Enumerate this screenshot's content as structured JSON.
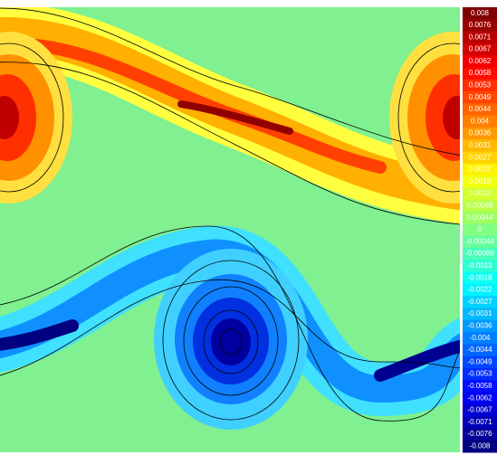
{
  "chart_data": {
    "type": "contour",
    "colormap": "jet",
    "colorbar_ticks": [
      {
        "value": 0.008,
        "label": "0.008"
      },
      {
        "value": 0.0076,
        "label": "0.0076"
      },
      {
        "value": 0.0071,
        "label": "0.0071"
      },
      {
        "value": 0.0067,
        "label": "0.0067"
      },
      {
        "value": 0.0062,
        "label": "0.0062"
      },
      {
        "value": 0.0058,
        "label": "0.0058"
      },
      {
        "value": 0.0053,
        "label": "0.0053"
      },
      {
        "value": 0.0049,
        "label": "0.0049"
      },
      {
        "value": 0.0044,
        "label": "0.0044"
      },
      {
        "value": 0.004,
        "label": "0.004"
      },
      {
        "value": 0.0036,
        "label": "0.0036"
      },
      {
        "value": 0.0031,
        "label": "0.0031"
      },
      {
        "value": 0.0027,
        "label": "0.0027"
      },
      {
        "value": 0.0022,
        "label": "0.0022"
      },
      {
        "value": 0.0018,
        "label": "0.0018"
      },
      {
        "value": 0.0013,
        "label": "0.0013"
      },
      {
        "value": 0.00089,
        "label": "0.00089"
      },
      {
        "value": 0.00044,
        "label": "0.00044"
      },
      0,
      {
        "value": -0.00044,
        "label": "-0.00044"
      },
      {
        "value": -0.00089,
        "label": "-0.00089"
      },
      {
        "value": -0.0013,
        "label": "-0.0013"
      },
      {
        "value": -0.0018,
        "label": "-0.0018"
      },
      {
        "value": -0.0022,
        "label": "-0.0022"
      },
      {
        "value": -0.0027,
        "label": "-0.0027"
      },
      {
        "value": -0.0031,
        "label": "-0.0031"
      },
      {
        "value": -0.0036,
        "label": "-0.0036"
      },
      {
        "value": -0.004,
        "label": "-0.004"
      },
      {
        "value": -0.0044,
        "label": "-0.0044"
      },
      {
        "value": -0.0049,
        "label": "-0.0049"
      },
      {
        "value": -0.0053,
        "label": "-0.0053"
      },
      {
        "value": -0.0058,
        "label": "-0.0058"
      },
      {
        "value": -0.0062,
        "label": "-0.0062"
      },
      {
        "value": -0.0067,
        "label": "-0.0067"
      },
      {
        "value": -0.0071,
        "label": "-0.0071"
      },
      {
        "value": -0.0076,
        "label": "-0.0076"
      },
      {
        "value": -0.008,
        "label": "-0.008"
      }
    ]
  }
}
